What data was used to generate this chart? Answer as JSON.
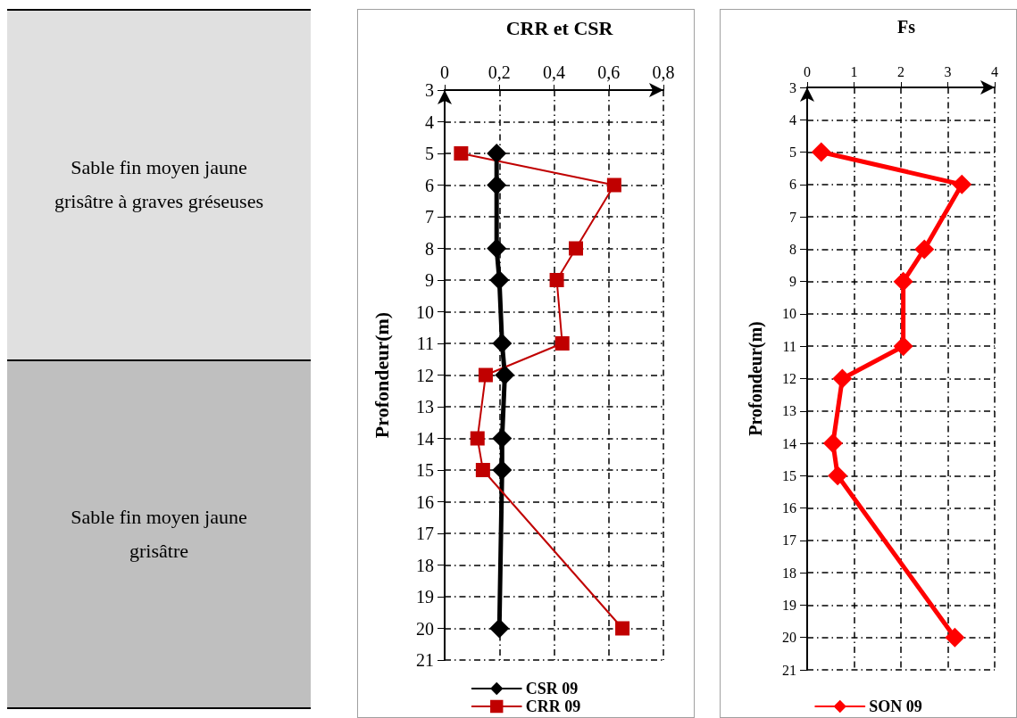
{
  "chart_data": [
    {
      "type": "other",
      "annotations": [
        "Sable fin moyen jaune grisâtre à graves gréseuses",
        "Sable fin moyen jaune grisâtre"
      ],
      "colors": [
        "#e0e0e0",
        "#bfbfbf"
      ]
    },
    {
      "type": "line",
      "title": "CRR et CSR",
      "ylabel": "Profondeur(m)",
      "xlim": [
        0,
        0.8
      ],
      "xticks": [
        0,
        {
          "value": 0.2,
          "label": "0,2"
        },
        {
          "value": 0.4,
          "label": "0,4"
        },
        {
          "value": 0.6,
          "label": "0,6"
        },
        {
          "value": 0.8,
          "label": "0,8"
        }
      ],
      "ylim": [
        21,
        3
      ],
      "yticks": [
        3,
        4,
        5,
        6,
        7,
        8,
        9,
        10,
        11,
        12,
        13,
        14,
        15,
        16,
        17,
        18,
        19,
        20,
        21
      ],
      "grid": true,
      "legend": "bottom",
      "series": [
        {
          "name": "CSR 09",
          "color": "#000000",
          "marker": "diamond",
          "x": [
            0.19,
            0.19,
            0.19,
            0.2,
            0.21,
            0.22,
            0.21,
            0.21,
            0.2
          ],
          "values": [
            5,
            6,
            8,
            9,
            11,
            12,
            14,
            15,
            20
          ]
        },
        {
          "name": "CRR 09",
          "color": "#c00000",
          "marker": "square",
          "x": [
            0.06,
            0.62,
            0.48,
            0.41,
            0.43,
            0.15,
            0.12,
            0.14,
            0.65
          ],
          "values": [
            5,
            6,
            8,
            9,
            11,
            12,
            14,
            15,
            20
          ]
        }
      ]
    },
    {
      "type": "line",
      "title": "Fs",
      "ylabel": "Profondeur(m)",
      "xlim": [
        0,
        4
      ],
      "xticks": [
        0,
        1,
        2,
        3,
        4
      ],
      "ylim": [
        21,
        3
      ],
      "yticks": [
        3,
        4,
        5,
        6,
        7,
        8,
        9,
        10,
        11,
        12,
        13,
        14,
        15,
        16,
        17,
        18,
        19,
        20,
        21
      ],
      "grid": true,
      "legend": "bottom",
      "series": [
        {
          "name": "SON 09",
          "color": "#ff0000",
          "marker": "diamond",
          "x": [
            0.3,
            3.3,
            2.5,
            2.05,
            2.05,
            0.75,
            0.55,
            0.65,
            3.15
          ],
          "values": [
            5,
            6,
            8,
            9,
            11,
            12,
            14,
            15,
            20
          ]
        }
      ]
    }
  ]
}
